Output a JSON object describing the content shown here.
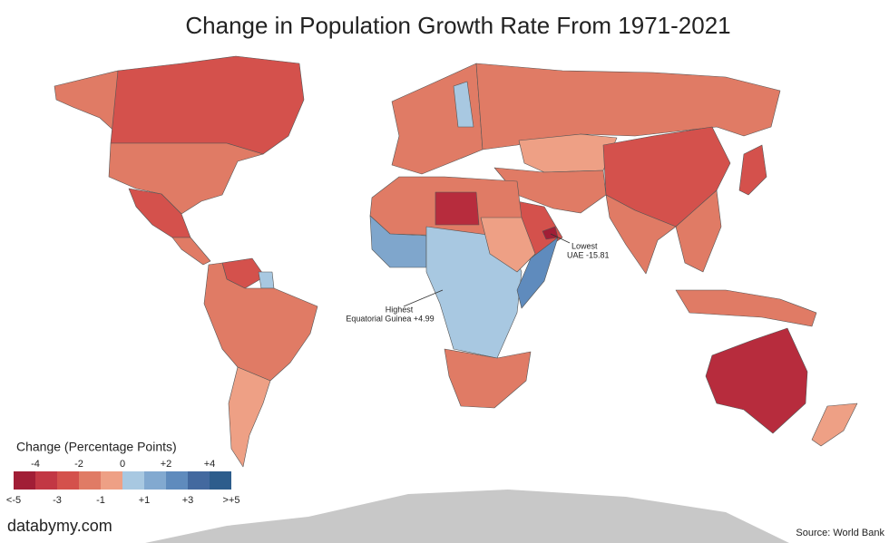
{
  "title": "Change in Population Growth Rate From 1971-2021",
  "annotations": [
    {
      "heading": "Lowest",
      "text": "UAE -15.81"
    },
    {
      "heading": "Highest",
      "text": "Equatorial Guinea +4.99"
    }
  ],
  "legend": {
    "title": "Change (Percentage Points)",
    "colors": [
      "#a11e36",
      "#c23744",
      "#d4514c",
      "#e07b65",
      "#eea085",
      "#a8c8e1",
      "#82a9d0",
      "#5f8bbd",
      "#43699f",
      "#2d5d8c"
    ],
    "ticks": [
      {
        "value": -5,
        "label": "<-5"
      },
      -4,
      -3,
      -2,
      -1,
      0,
      {
        "value": 1,
        "label": "+1"
      },
      {
        "value": 2,
        "label": "+2"
      },
      {
        "value": 3,
        "label": "+3"
      },
      {
        "value": 4,
        "label": "+4"
      },
      {
        "value": 5,
        "label": ">+5"
      }
    ]
  },
  "source": "Source: World Bank",
  "watermark": "databymy.com"
}
